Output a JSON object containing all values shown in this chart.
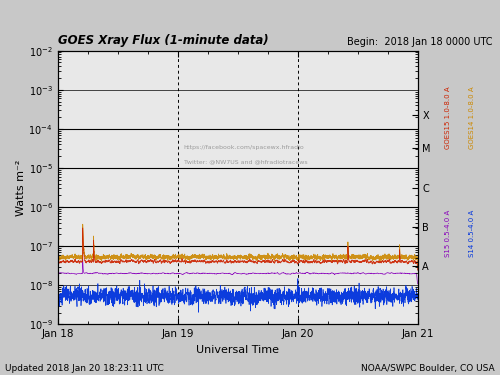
{
  "title_left": "GOES Xray Flux (1-minute data)",
  "title_right": "Begin:  2018 Jan 18 0000 UTC",
  "xlabel": "Universal Time",
  "ylabel": "Watts m⁻²",
  "footer_left": "Updated 2018 Jan 20 18:23:11 UTC",
  "footer_right": "NOAA/SWPC Boulder, CO USA",
  "watermark_line1": "https://facebook.com/spacewx.hfradio",
  "watermark_line2": "Twitter: @NW7US and @hfradiotracews",
  "bg_color": "#c8c8c8",
  "plot_bg": "#e8e8e8",
  "goes15_xray_color": "#cc2200",
  "goes14_xray_color": "#cc8800",
  "goes15_particle_color": "#8800bb",
  "goes14_particle_color": "#0033dd",
  "right_label_goes15_xray": "GOES15 1.0-8.0 A",
  "right_label_goes14_xray": "GOES14 1.0-8.0 A",
  "right_label_goes15_part": "S15 0.5-4.0 A",
  "right_label_goes14_part": "S14 0.5-4.0 A",
  "seed": 42
}
